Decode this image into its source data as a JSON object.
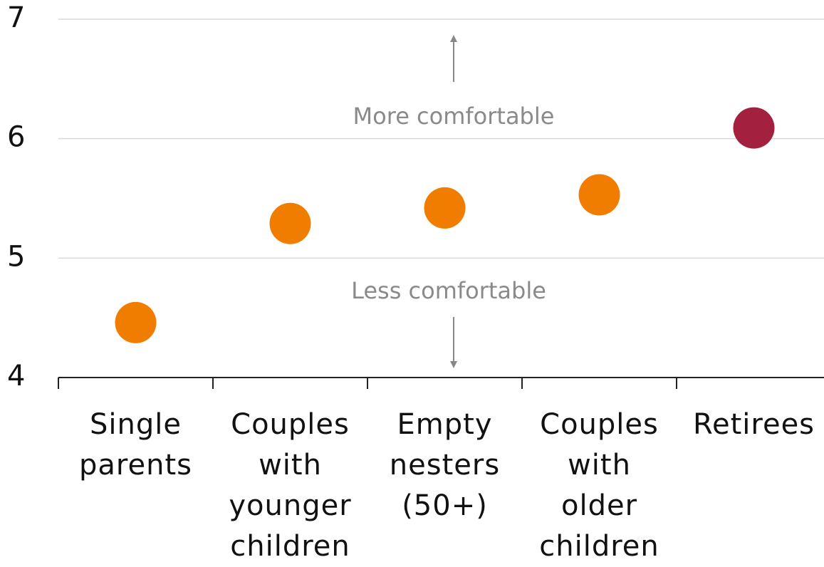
{
  "chart_data": {
    "type": "dot",
    "categories": [
      "Single\nparents",
      "Couples\nwith\nyounger\nchildren",
      "Empty\nnesters\n(50+)",
      "Couples\nwith\nolder\nchildren",
      "Retirees"
    ],
    "values": [
      4.46,
      5.29,
      5.42,
      5.53,
      6.09
    ],
    "colors": [
      "#f07c00",
      "#f07c00",
      "#f07c00",
      "#f07c00",
      "#a3213f"
    ],
    "ylim": [
      4,
      7
    ],
    "yticks": [
      4,
      5,
      6,
      7
    ],
    "grid": true,
    "annotations": [
      "More comfortable",
      "Less comfortable"
    ]
  }
}
